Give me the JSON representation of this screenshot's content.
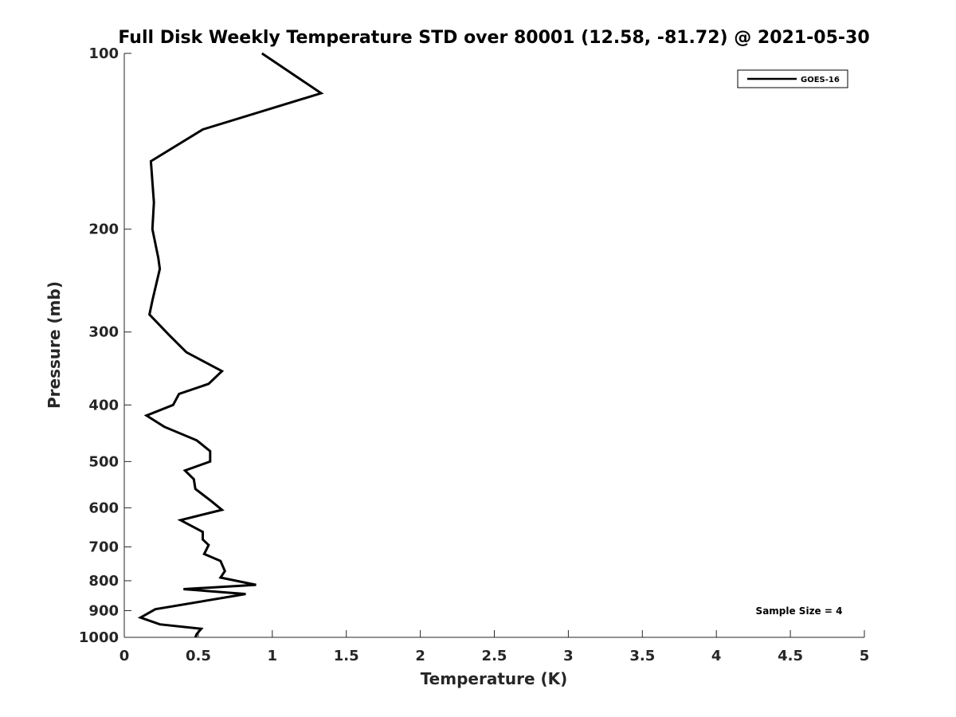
{
  "chart_data": {
    "type": "line",
    "title": "Full Disk Weekly Temperature STD over 80001 (12.58, -81.72) @ 2021-05-30",
    "xlabel": "Temperature (K)",
    "ylabel": "Pressure (mb)",
    "xlim": [
      0,
      5
    ],
    "ylim": [
      100,
      1000
    ],
    "y_scale": "log",
    "y_reversed": true,
    "x_ticks": [
      "0",
      "0.5",
      "1",
      "1.5",
      "2",
      "2.5",
      "3",
      "3.5",
      "4",
      "4.5",
      "5"
    ],
    "y_ticks": [
      "100",
      "200",
      "300",
      "400",
      "500",
      "600",
      "700",
      "800",
      "900",
      "1000"
    ],
    "grid": false,
    "legend": {
      "position": "top-right",
      "entries": [
        "GOES-16"
      ]
    },
    "annotation": "Sample Size = 4",
    "series": [
      {
        "name": "GOES-16",
        "color": "#000000",
        "x": [
          0.93,
          1.33,
          0.53,
          0.18,
          0.2,
          0.19,
          0.23,
          0.24,
          0.19,
          0.17,
          0.3,
          0.42,
          0.66,
          0.57,
          0.37,
          0.33,
          0.15,
          0.27,
          0.49,
          0.58,
          0.58,
          0.41,
          0.47,
          0.48,
          0.59,
          0.66,
          0.38,
          0.53,
          0.53,
          0.57,
          0.54,
          0.65,
          0.68,
          0.65,
          0.89,
          0.4,
          0.82,
          0.21,
          0.11,
          0.24,
          0.52,
          0.49,
          0.48
        ],
        "y": [
          100,
          117,
          135,
          153,
          180,
          200,
          224,
          234,
          265,
          280,
          303,
          325,
          350,
          368,
          383,
          400,
          417,
          436,
          460,
          480,
          500,
          518,
          536,
          557,
          585,
          605,
          630,
          660,
          680,
          695,
          720,
          740,
          770,
          790,
          813,
          827,
          843,
          895,
          925,
          950,
          967,
          987,
          1000
        ]
      }
    ]
  }
}
